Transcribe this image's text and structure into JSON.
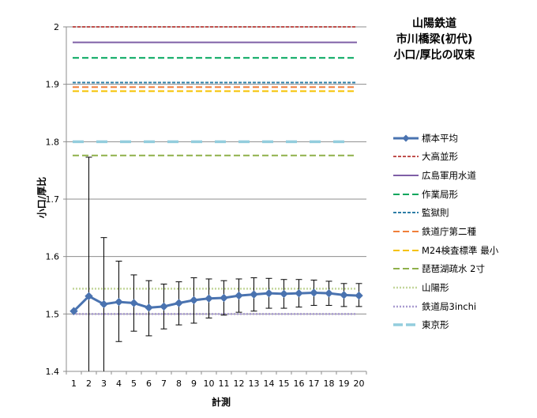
{
  "title_lines": [
    "山陽鉄道",
    "市川橋梁(初代)",
    "小口/厚比の収束"
  ],
  "chart_data": {
    "type": "line",
    "title": "山陽鉄道 市川橋梁(初代) 小口/厚比の収束",
    "xlabel": "計測",
    "ylabel": "小口/厚比",
    "categories": [
      "1",
      "2",
      "3",
      "4",
      "5",
      "6",
      "7",
      "8",
      "9",
      "10",
      "11",
      "12",
      "13",
      "14",
      "15",
      "16",
      "17",
      "18",
      "19",
      "20"
    ],
    "ylim": [
      1.4,
      2.0
    ],
    "yticks": [
      "1.4",
      "1.5",
      "1.6",
      "1.7",
      "1.8",
      "1.9",
      "2"
    ],
    "grid": true,
    "legend_position": "right",
    "series": [
      {
        "name": "標本平均",
        "color": "#4a73b0",
        "marker": "diamond",
        "values": [
          1.505,
          1.531,
          1.517,
          1.521,
          1.519,
          1.511,
          1.513,
          1.519,
          1.524,
          1.527,
          1.528,
          1.532,
          1.534,
          1.536,
          1.535,
          1.536,
          1.537,
          1.536,
          1.533,
          1.532
        ],
        "error_low": [
          null,
          1.4,
          1.4,
          1.452,
          1.47,
          1.462,
          1.474,
          1.481,
          1.484,
          1.493,
          1.498,
          1.503,
          1.505,
          1.51,
          1.51,
          1.512,
          1.515,
          1.515,
          1.513,
          1.513
        ],
        "error_high": [
          null,
          1.773,
          1.633,
          1.592,
          1.568,
          1.558,
          1.552,
          1.556,
          1.563,
          1.561,
          1.558,
          1.561,
          1.563,
          1.562,
          1.56,
          1.56,
          1.559,
          1.557,
          1.553,
          1.553
        ]
      }
    ],
    "reference_lines": [
      {
        "name": "大高並形",
        "value": 2.0,
        "color": "#c0504d",
        "style": "dashed-fine"
      },
      {
        "name": "広島軍用水道",
        "value": 1.973,
        "color": "#7f5fa6",
        "style": "solid"
      },
      {
        "name": "作業局形",
        "value": 1.946,
        "color": "#00a65d",
        "style": "dashed"
      },
      {
        "name": "監獄則",
        "value": 1.903,
        "color": "#2e7ea6",
        "style": "dashed-fine"
      },
      {
        "name": "鉄道庁第二種",
        "value": 1.895,
        "color": "#f07f3a",
        "style": "dashed"
      },
      {
        "name": "M24検査標準 最小",
        "value": 1.888,
        "color": "#f5c200",
        "style": "dashed"
      },
      {
        "name": "琵琶湖疏水 2寸",
        "value": 1.776,
        "color": "#8fb04a",
        "style": "dashed"
      },
      {
        "name": "山陽形",
        "value": 1.544,
        "color": "#c3d69b",
        "style": "dotted"
      },
      {
        "name": "鉄道局3inchi",
        "value": 1.5,
        "color": "#a99bd0",
        "style": "dotted"
      },
      {
        "name": "東京形",
        "value": 1.8,
        "color": "#93cddd",
        "style": "long-dash"
      }
    ]
  }
}
